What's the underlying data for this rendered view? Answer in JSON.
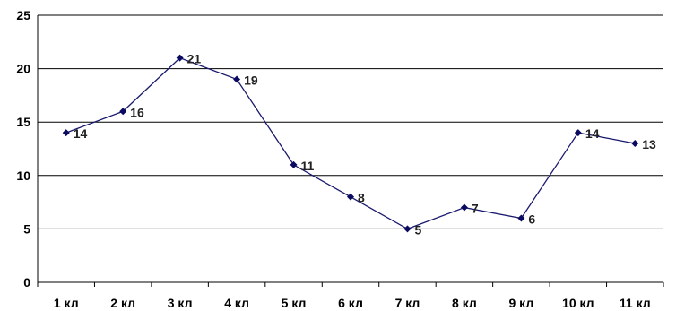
{
  "chart_data": {
    "type": "line",
    "categories": [
      "1 кл",
      "2 кл",
      "3 кл",
      "4 кл",
      "5 кл",
      "6 кл",
      "7 кл",
      "8 кл",
      "9 кл",
      "10 кл",
      "11 кл"
    ],
    "series": [
      {
        "values": [
          14,
          16,
          21,
          19,
          11,
          8,
          5,
          7,
          6,
          14,
          13
        ]
      }
    ],
    "data_labels": [
      "14",
      "16",
      "21",
      "19",
      "11",
      "8",
      "5",
      "7",
      "6",
      "14",
      "13"
    ],
    "y_ticks": [
      "0",
      "5",
      "10",
      "15",
      "20",
      "25"
    ],
    "ylim": [
      0,
      25
    ],
    "grid": true,
    "legend": "none",
    "title": "",
    "xlabel": "",
    "ylabel": "",
    "colors": {
      "line": "#1a1a6e",
      "marker": "#0a0a60",
      "grid": "#000000"
    }
  }
}
